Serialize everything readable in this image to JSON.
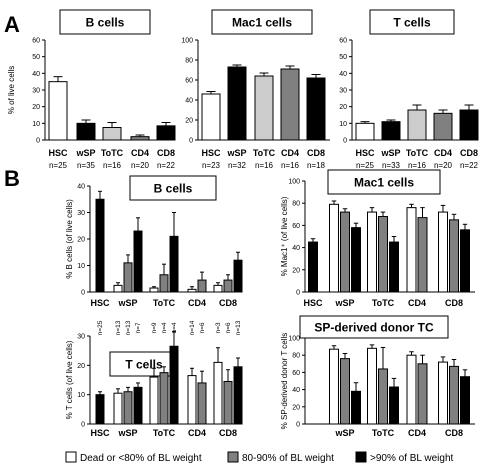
{
  "panel_letters": [
    "A",
    "B"
  ],
  "legend": {
    "items": [
      {
        "label": "Dead or <80% of BL weight",
        "color": "#ffffff"
      },
      {
        "label": "80-90% of BL weight",
        "color": "#808080"
      },
      {
        "label": ">90% of BL weight",
        "color": "#000000"
      }
    ]
  },
  "chart_data": [
    {
      "id": "A1",
      "type": "bar",
      "title": "B cells",
      "ylabel": "% of live cells",
      "ylim": [
        0,
        60
      ],
      "yticks": [
        0,
        10,
        20,
        30,
        40,
        50,
        60
      ],
      "categories": [
        "HSC",
        "wSP",
        "ToTC",
        "CD4",
        "CD8"
      ],
      "n_labels": [
        "n=25",
        "n=35",
        "n=16",
        "n=20",
        "n=22"
      ],
      "values": [
        35,
        10,
        7.5,
        2,
        8.5
      ],
      "errors": [
        3,
        2,
        3,
        1,
        2
      ],
      "colors": [
        "#ffffff",
        "#000000",
        "#cccccc",
        "#808080",
        "#000000"
      ]
    },
    {
      "id": "A2",
      "type": "bar",
      "title": "Mac1 cells",
      "ylabel": "",
      "ylim": [
        0,
        100
      ],
      "yticks": [
        0,
        20,
        40,
        60,
        80,
        100
      ],
      "categories": [
        "HSC",
        "wSP",
        "ToTC",
        "CD4",
        "CD8"
      ],
      "n_labels": [
        "n=23",
        "n=32",
        "n=16",
        "n=16",
        "n=18"
      ],
      "values": [
        46,
        73,
        64,
        71,
        62
      ],
      "errors": [
        2.5,
        2,
        3,
        3,
        3.5
      ],
      "colors": [
        "#ffffff",
        "#000000",
        "#cccccc",
        "#808080",
        "#000000"
      ]
    },
    {
      "id": "A3",
      "type": "bar",
      "title": "T cells",
      "ylabel": "",
      "ylim": [
        0,
        60
      ],
      "yticks": [
        0,
        10,
        20,
        30,
        40,
        50,
        60
      ],
      "categories": [
        "HSC",
        "wSP",
        "ToTC",
        "CD4",
        "CD8"
      ],
      "n_labels": [
        "n=25",
        "n=33",
        "n=16",
        "n=20",
        "n=22"
      ],
      "values": [
        10,
        11,
        18,
        16,
        18
      ],
      "errors": [
        1,
        1,
        3,
        2,
        3
      ],
      "colors": [
        "#ffffff",
        "#000000",
        "#cccccc",
        "#808080",
        "#000000"
      ]
    },
    {
      "id": "B1",
      "type": "bar",
      "title": "B cells",
      "ylabel": "% B cells (of live cells)",
      "ylim": [
        0,
        40
      ],
      "yticks": [
        0,
        10,
        20,
        30,
        40
      ],
      "categories": [
        "HSC",
        "wSP",
        "ToTC",
        "CD4",
        "CD8"
      ],
      "groups": [
        {
          "values": [
            35
          ],
          "errors": [
            3
          ],
          "colors": [
            "#000000"
          ]
        },
        {
          "values": [
            2.5,
            11,
            23
          ],
          "errors": [
            1,
            3,
            5
          ],
          "colors": [
            "#ffffff",
            "#808080",
            "#000000"
          ]
        },
        {
          "values": [
            1.5,
            6.5,
            21
          ],
          "errors": [
            0.5,
            4,
            9
          ],
          "colors": [
            "#ffffff",
            "#808080",
            "#000000"
          ]
        },
        {
          "values": [
            1,
            4.5
          ],
          "errors": [
            1,
            3
          ],
          "colors": [
            "#ffffff",
            "#808080"
          ]
        },
        {
          "values": [
            2.5,
            4.5,
            12
          ],
          "errors": [
            1,
            2,
            3
          ],
          "colors": [
            "#ffffff",
            "#808080",
            "#000000"
          ]
        }
      ],
      "n_labels": [
        [
          "n=25"
        ],
        [
          "n=13",
          "n=13",
          "n=7"
        ],
        [
          "n=9",
          "n=4",
          "n=4"
        ],
        [
          "n=14",
          "n=6"
        ],
        [
          "n=3",
          "n=6",
          "n=13"
        ]
      ]
    },
    {
      "id": "B2",
      "type": "bar",
      "title": "Mac1 cells",
      "ylabel": "% Mac1⁺ (of live cells)",
      "ylim": [
        0,
        100
      ],
      "yticks": [
        0,
        20,
        40,
        60,
        80,
        100
      ],
      "categories": [
        "HSC",
        "wSP",
        "ToTC",
        "CD4",
        "CD8"
      ],
      "groups": [
        {
          "values": [
            45
          ],
          "errors": [
            3
          ],
          "colors": [
            "#000000"
          ]
        },
        {
          "values": [
            79,
            72,
            58
          ],
          "errors": [
            3,
            3,
            4
          ],
          "colors": [
            "#ffffff",
            "#808080",
            "#000000"
          ]
        },
        {
          "values": [
            72,
            68,
            45
          ],
          "errors": [
            4,
            4,
            5
          ],
          "colors": [
            "#ffffff",
            "#808080",
            "#000000"
          ]
        },
        {
          "values": [
            76,
            67
          ],
          "errors": [
            3,
            9
          ],
          "colors": [
            "#ffffff",
            "#808080"
          ]
        },
        {
          "values": [
            72,
            65,
            56
          ],
          "errors": [
            6,
            5,
            5
          ],
          "colors": [
            "#ffffff",
            "#808080",
            "#000000"
          ]
        }
      ]
    },
    {
      "id": "B3",
      "type": "bar",
      "title": "T cells",
      "ylabel": "% T cells (of live cells)",
      "ylim": [
        0,
        30
      ],
      "yticks": [
        0,
        10,
        20,
        30
      ],
      "categories": [
        "HSC",
        "wSP",
        "ToTC",
        "CD4",
        "CD8"
      ],
      "groups": [
        {
          "values": [
            10
          ],
          "errors": [
            1
          ],
          "colors": [
            "#000000"
          ]
        },
        {
          "values": [
            10.5,
            11,
            12.5
          ],
          "errors": [
            1.5,
            1.5,
            1.5
          ],
          "colors": [
            "#ffffff",
            "#808080",
            "#000000"
          ]
        },
        {
          "values": [
            16,
            17.5,
            26.5
          ],
          "errors": [
            3,
            2,
            5
          ],
          "colors": [
            "#ffffff",
            "#808080",
            "#000000"
          ]
        },
        {
          "values": [
            16.5,
            14
          ],
          "errors": [
            2.5,
            4
          ],
          "colors": [
            "#ffffff",
            "#808080"
          ]
        },
        {
          "values": [
            21,
            14.5,
            19.5
          ],
          "errors": [
            5,
            4,
            3
          ],
          "colors": [
            "#ffffff",
            "#808080",
            "#000000"
          ]
        }
      ]
    },
    {
      "id": "B4",
      "type": "bar",
      "title": "SP-derived donor TC",
      "ylabel": "% SP-derived donor T cells",
      "ylim": [
        0,
        100
      ],
      "yticks": [
        0,
        20,
        40,
        60,
        80,
        100
      ],
      "categories": [
        "wSP",
        "ToTC",
        "CD4",
        "CD8"
      ],
      "groups": [
        {
          "values": [
            87,
            76,
            38
          ],
          "errors": [
            4,
            6,
            10
          ],
          "colors": [
            "#ffffff",
            "#808080",
            "#000000"
          ]
        },
        {
          "values": [
            88,
            64,
            43
          ],
          "errors": [
            4,
            25,
            10
          ],
          "colors": [
            "#ffffff",
            "#808080",
            "#000000"
          ]
        },
        {
          "values": [
            80,
            70
          ],
          "errors": [
            4,
            10
          ],
          "colors": [
            "#ffffff",
            "#808080"
          ]
        },
        {
          "values": [
            72,
            67,
            55
          ],
          "errors": [
            6,
            8,
            8
          ],
          "colors": [
            "#ffffff",
            "#808080",
            "#000000"
          ]
        }
      ]
    }
  ]
}
